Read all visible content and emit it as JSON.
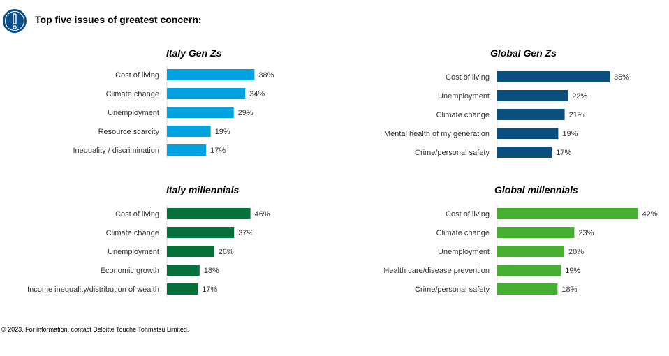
{
  "header": {
    "title": "Top five issues of greatest concern:",
    "icon": "exclamation-icon",
    "icon_color": "#0b4f8a"
  },
  "chart_data": [
    {
      "type": "bar",
      "orientation": "horizontal",
      "title": "Italy Gen Zs",
      "categories": [
        "Cost of living",
        "Climate change",
        "Unemployment",
        "Resource scarcity",
        "Inequality / discrimination"
      ],
      "values": [
        38,
        34,
        29,
        19,
        17
      ],
      "value_labels": [
        "38%",
        "34%",
        "29%",
        "19%",
        "17%"
      ],
      "unit": "%",
      "color": "#00a3e0",
      "xlim": [
        0,
        50
      ]
    },
    {
      "type": "bar",
      "orientation": "horizontal",
      "title": "Global Gen Zs",
      "categories": [
        "Cost of living",
        "Unemployment",
        "Climate change",
        "Mental health of my generation",
        "Crime/personal safety"
      ],
      "values": [
        35,
        22,
        21,
        19,
        17
      ],
      "value_labels": [
        "35%",
        "22%",
        "21%",
        "19%",
        "17%"
      ],
      "unit": "%",
      "color": "#0b4f7e",
      "xlim": [
        0,
        50
      ]
    },
    {
      "type": "bar",
      "orientation": "horizontal",
      "title": "Italy millennials",
      "categories": [
        "Cost of living",
        "Climate change",
        "Unemployment",
        "Economic growth",
        "Income inequality/distribution of wealth"
      ],
      "values": [
        46,
        37,
        26,
        18,
        17
      ],
      "value_labels": [
        "46%",
        "37%",
        "26%",
        "18%",
        "17%"
      ],
      "unit": "%",
      "color": "#04703a",
      "xlim": [
        0,
        50
      ]
    },
    {
      "type": "bar",
      "orientation": "horizontal",
      "title": "Global millennials",
      "categories": [
        "Cost of living",
        "Climate change",
        "Unemployment",
        "Health care/disease prevention",
        "Crime/personal safety"
      ],
      "values": [
        42,
        23,
        20,
        19,
        18
      ],
      "value_labels": [
        "42%",
        "23%",
        "20%",
        "19%",
        "18%"
      ],
      "unit": "%",
      "color": "#45b02f",
      "xlim": [
        0,
        50
      ]
    }
  ],
  "footer": {
    "copyright": "© 2023. For information, contact Deloitte Touche Tohmatsu Limited."
  }
}
